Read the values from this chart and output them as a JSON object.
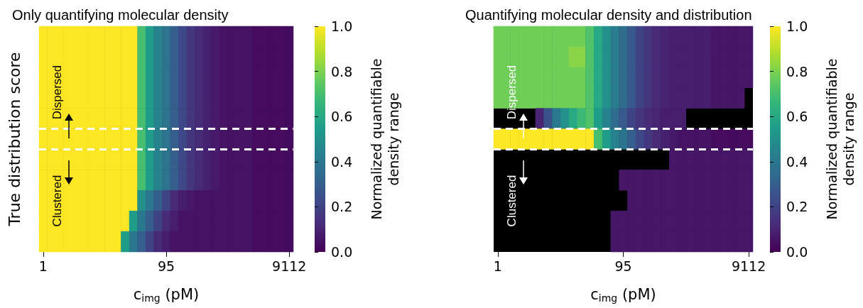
{
  "chart_data": [
    {
      "type": "heatmap",
      "title": "Only quantifying molecular density",
      "xlabel": "c$_{img}$ (pM)",
      "ylabel": "True distribution score",
      "clabel": "Normalized quantifiable\ndensity range",
      "categories": [
        "1",
        null,
        null,
        null,
        null,
        null,
        null,
        null,
        null,
        null,
        null,
        null,
        null,
        null,
        null,
        "95",
        null,
        null,
        null,
        null,
        null,
        null,
        null,
        null,
        null,
        null,
        null,
        null,
        null,
        null,
        "9112"
      ],
      "y_categories": [
        null,
        null,
        null,
        null,
        null,
        null,
        null,
        null,
        null,
        null,
        null
      ],
      "cells": [
        [
          1,
          1,
          1,
          1,
          1,
          1,
          1,
          1,
          1,
          1,
          1,
          1,
          0.7,
          0.55,
          0.45,
          0.38,
          0.3,
          0.22,
          0.16,
          0.12,
          0.09,
          0.07,
          0.05,
          0.05,
          0.05,
          0.05,
          0.03,
          0.03,
          0.03,
          0.03,
          0.03
        ],
        [
          1,
          1,
          1,
          1,
          1,
          1,
          1,
          1,
          1,
          1,
          1,
          1,
          0.7,
          0.55,
          0.45,
          0.38,
          0.3,
          0.22,
          0.16,
          0.12,
          0.09,
          0.07,
          0.05,
          0.05,
          0.05,
          0.05,
          0.03,
          0.03,
          0.03,
          0.03,
          0.03
        ],
        [
          1,
          1,
          1,
          1,
          1,
          1,
          1,
          1,
          1,
          1,
          1,
          1,
          0.7,
          0.55,
          0.45,
          0.38,
          0.3,
          0.22,
          0.16,
          0.12,
          0.09,
          0.07,
          0.05,
          0.05,
          0.05,
          0.05,
          0.03,
          0.03,
          0.03,
          0.03,
          0.03
        ],
        [
          1,
          1,
          1,
          1,
          1,
          1,
          1,
          1,
          1,
          1,
          1,
          1,
          0.7,
          0.55,
          0.45,
          0.38,
          0.3,
          0.22,
          0.16,
          0.12,
          0.09,
          0.07,
          0.05,
          0.05,
          0.05,
          0.05,
          0.03,
          0.03,
          0.03,
          0.03,
          0.03
        ],
        [
          1,
          1,
          1,
          1,
          1,
          1,
          1,
          1,
          1,
          1,
          1,
          1,
          0.7,
          0.55,
          0.45,
          0.38,
          0.3,
          0.22,
          0.16,
          0.12,
          0.09,
          0.07,
          0.05,
          0.05,
          0.05,
          0.05,
          0.03,
          0.03,
          0.03,
          0.03,
          0.03
        ],
        [
          1,
          1,
          1,
          1,
          1,
          1,
          1,
          1,
          1,
          1,
          1,
          1,
          0.7,
          0.55,
          0.45,
          0.38,
          0.3,
          0.22,
          0.16,
          0.12,
          0.09,
          0.07,
          0.05,
          0.05,
          0.05,
          0.05,
          0.03,
          0.03,
          0.03,
          0.03,
          0.03
        ],
        [
          1,
          1,
          1,
          1,
          1,
          1,
          1,
          1,
          1,
          1,
          1,
          1,
          0.7,
          0.55,
          0.45,
          0.38,
          0.3,
          0.22,
          0.16,
          0.12,
          0.09,
          0.07,
          0.05,
          0.05,
          0.05,
          0.05,
          0.03,
          0.03,
          0.03,
          0.03,
          0.03
        ],
        [
          1,
          1,
          1,
          1,
          1,
          1,
          1,
          1,
          1,
          1,
          1,
          1,
          0.7,
          0.55,
          0.45,
          0.38,
          0.3,
          0.22,
          0.16,
          0.12,
          0.09,
          0.07,
          0.05,
          0.05,
          0.05,
          0.05,
          0.03,
          0.03,
          0.03,
          0.03,
          0.03
        ],
        [
          1,
          1,
          1,
          1,
          1,
          1,
          1,
          1,
          1,
          1,
          1,
          1,
          0.5,
          0.4,
          0.3,
          0.2,
          0.12,
          0.08,
          0.06,
          0.05,
          0.05,
          0.05,
          0.05,
          0.05,
          0.05,
          0.05,
          0.03,
          0.03,
          0.03,
          0.03,
          0.03
        ],
        [
          1,
          1,
          1,
          1,
          1,
          1,
          1,
          1,
          1,
          1,
          1,
          0.55,
          0.4,
          0.3,
          0.2,
          0.12,
          0.08,
          0.05,
          0.05,
          0.05,
          0.05,
          0.05,
          0.05,
          0.05,
          0.05,
          0.05,
          0.03,
          0.03,
          0.03,
          0.03,
          0.03
        ],
        [
          1,
          1,
          1,
          1,
          1,
          1,
          1,
          1,
          1,
          1,
          0.55,
          0.4,
          0.3,
          0.2,
          0.12,
          0.08,
          0.05,
          0.05,
          0.05,
          0.05,
          0.05,
          0.05,
          0.05,
          0.05,
          0.05,
          0.05,
          0.03,
          0.03,
          0.03,
          0.03,
          0.03
        ]
      ],
      "clim": [
        0,
        1
      ],
      "cticks": [
        {
          "value": 0,
          "label": "0.0"
        },
        {
          "value": 0.2,
          "label": "0.2"
        },
        {
          "value": 0.4,
          "label": "0.4"
        },
        {
          "value": 0.6,
          "label": "0.6"
        },
        {
          "value": 0.8,
          "label": "0.8"
        },
        {
          "value": 1,
          "label": "1.0"
        }
      ],
      "annotations": [
        "Dispersed",
        "Clustered"
      ]
    },
    {
      "type": "heatmap",
      "title": "Quantifying molecular density and distribution",
      "xlabel": "c$_{img}$ (pM)",
      "clabel": "Normalized quantifiable\ndensity range",
      "categories": [
        "1",
        null,
        null,
        null,
        null,
        null,
        null,
        null,
        null,
        null,
        null,
        null,
        null,
        null,
        null,
        "95",
        null,
        null,
        null,
        null,
        null,
        null,
        null,
        null,
        null,
        null,
        null,
        null,
        null,
        null,
        "9112"
      ],
      "y_categories": [
        null,
        null,
        null,
        null,
        null,
        null,
        null,
        null,
        null,
        null,
        null
      ],
      "cells": [
        [
          0.78,
          0.78,
          0.78,
          0.78,
          0.78,
          0.78,
          0.78,
          0.78,
          0.78,
          0.78,
          0.78,
          0.72,
          0.6,
          0.5,
          0.42,
          0.35,
          0.28,
          0.2,
          0.15,
          0.12,
          0.1,
          0.08,
          0.08,
          0.08,
          0.08,
          0.08,
          0.06,
          0.06,
          0.06,
          0.06,
          0.06
        ],
        [
          0.78,
          0.78,
          0.78,
          0.78,
          0.78,
          0.78,
          0.78,
          0.78,
          0.78,
          0.82,
          0.82,
          0.72,
          0.6,
          0.5,
          0.42,
          0.35,
          0.28,
          0.2,
          0.15,
          0.12,
          0.1,
          0.08,
          0.08,
          0.08,
          0.08,
          0.08,
          0.06,
          0.06,
          0.06,
          0.06,
          0.06
        ],
        [
          0.78,
          0.78,
          0.78,
          0.78,
          0.78,
          0.78,
          0.78,
          0.78,
          0.78,
          0.78,
          0.78,
          0.72,
          0.6,
          0.5,
          0.42,
          0.35,
          0.28,
          0.2,
          0.15,
          0.12,
          0.1,
          0.08,
          0.08,
          0.08,
          0.08,
          0.08,
          0.06,
          0.06,
          0.06,
          0.06,
          0.06
        ],
        [
          0.78,
          0.78,
          0.78,
          0.78,
          0.78,
          0.78,
          0.78,
          0.78,
          0.78,
          0.78,
          0.78,
          0.72,
          0.6,
          0.5,
          0.42,
          0.35,
          0.28,
          0.2,
          0.15,
          0.12,
          0.1,
          0.08,
          0.08,
          0.08,
          0.08,
          0.08,
          0.06,
          0.06,
          0.06,
          0.06,
          null
        ],
        [
          null,
          null,
          null,
          null,
          null,
          0.1,
          0.25,
          0.4,
          0.5,
          0.6,
          0.68,
          0.72,
          0.55,
          0.45,
          0.35,
          0.28,
          0.2,
          0.15,
          0.12,
          0.1,
          0.08,
          0.08,
          0.08,
          null,
          null,
          null,
          null,
          null,
          null,
          null,
          null
        ],
        [
          1,
          1,
          1,
          1,
          1,
          1,
          1,
          1,
          1,
          1,
          1,
          1,
          0.7,
          0.55,
          0.45,
          0.38,
          0.3,
          0.22,
          0.16,
          0.12,
          0.09,
          0.07,
          0.05,
          0.05,
          0.05,
          0.05,
          0.03,
          0.03,
          0.03,
          0.03,
          0.03
        ],
        [
          null,
          null,
          null,
          null,
          null,
          null,
          null,
          null,
          null,
          null,
          null,
          null,
          null,
          null,
          null,
          null,
          null,
          null,
          null,
          null,
          null,
          0.06,
          0.06,
          0.06,
          0.06,
          0.06,
          0.06,
          0.06,
          0.06,
          0.06,
          0.06
        ],
        [
          null,
          null,
          null,
          null,
          null,
          null,
          null,
          null,
          null,
          null,
          null,
          null,
          null,
          null,
          null,
          0.06,
          0.06,
          0.06,
          0.06,
          0.06,
          0.06,
          0.06,
          0.06,
          0.06,
          0.06,
          0.06,
          0.06,
          0.06,
          0.06,
          0.06,
          0.06
        ],
        [
          null,
          null,
          null,
          null,
          null,
          null,
          null,
          null,
          null,
          null,
          null,
          null,
          null,
          null,
          null,
          null,
          0.06,
          0.06,
          0.06,
          0.06,
          0.06,
          0.06,
          0.06,
          0.06,
          0.06,
          0.06,
          0.06,
          0.06,
          0.06,
          0.06,
          0.06
        ],
        [
          null,
          null,
          null,
          null,
          null,
          null,
          null,
          null,
          null,
          null,
          null,
          null,
          null,
          null,
          0.06,
          0.06,
          0.06,
          0.06,
          0.06,
          0.06,
          0.06,
          0.06,
          0.06,
          0.06,
          0.06,
          0.06,
          0.06,
          0.06,
          0.06,
          0.06,
          0.06
        ],
        [
          null,
          null,
          null,
          null,
          null,
          null,
          null,
          null,
          null,
          null,
          null,
          null,
          null,
          null,
          0.06,
          0.06,
          0.06,
          0.06,
          0.06,
          0.06,
          0.06,
          0.06,
          0.06,
          0.06,
          0.06,
          0.06,
          0.06,
          0.06,
          0.06,
          0.06,
          0.06
        ]
      ],
      "clim": [
        0,
        1
      ],
      "cticks": [
        {
          "value": 0,
          "label": "0.0"
        },
        {
          "value": 0.2,
          "label": "0.2"
        },
        {
          "value": 0.4,
          "label": "0.4"
        },
        {
          "value": 0.6,
          "label": "0.6"
        },
        {
          "value": 0.8,
          "label": "0.8"
        },
        {
          "value": 1,
          "label": "1.0"
        }
      ],
      "annotations": [
        "Dispersed",
        "Clustered"
      ]
    }
  ]
}
